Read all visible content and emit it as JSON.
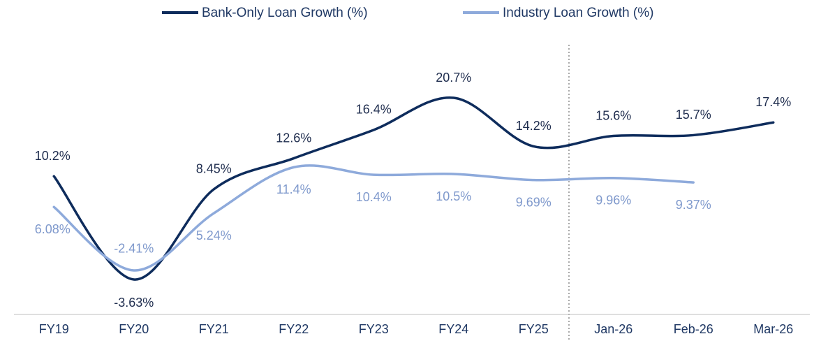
{
  "chart_data": {
    "type": "line",
    "categories": [
      "FY19",
      "FY20",
      "FY21",
      "FY22",
      "FY23",
      "FY24",
      "FY25",
      "Jan-26",
      "Feb-26",
      "Mar-26"
    ],
    "series": [
      {
        "name": "Bank-Only Loan Growth (%)",
        "color": "#0e2c5c",
        "values": [
          10.2,
          -3.63,
          8.45,
          12.6,
          16.4,
          20.7,
          14.2,
          15.6,
          15.7,
          17.4
        ],
        "value_labels": [
          "10.2%",
          "-3.63%",
          "8.45%",
          "12.6%",
          "16.4%",
          "20.7%",
          "14.2%",
          "15.6%",
          "15.7%",
          "17.4%"
        ]
      },
      {
        "name": "Industry Loan Growth (%)",
        "color": "#8eaadb",
        "values": [
          6.08,
          -2.41,
          5.24,
          11.4,
          10.4,
          10.5,
          9.69,
          9.96,
          9.37,
          null
        ],
        "value_labels": [
          "6.08%",
          "-2.41%",
          "5.24%",
          "11.4%",
          "10.4%",
          "10.5%",
          "9.69%",
          "9.96%",
          "9.37%",
          null
        ]
      }
    ],
    "legend": "top"
  }
}
